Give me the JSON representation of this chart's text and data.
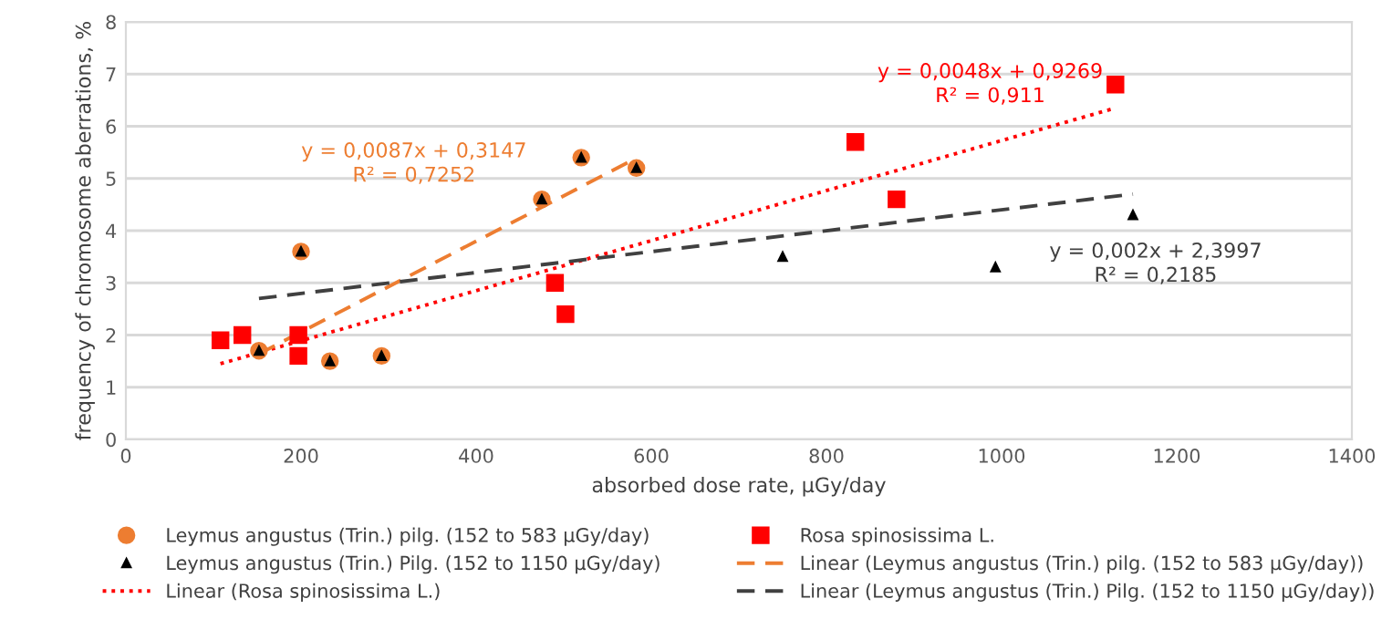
{
  "chart_data": {
    "type": "scatter",
    "xlabel": "absorbed dose rate, µGy/day",
    "ylabel": "frequency of chromosome aberrations, %",
    "xlim": [
      0,
      1400
    ],
    "xticks": [
      0,
      200,
      400,
      600,
      800,
      1000,
      1200,
      1400
    ],
    "ylim": [
      0,
      8
    ],
    "yticks": [
      0,
      1,
      2,
      3,
      4,
      5,
      6,
      7,
      8
    ],
    "grid": "y",
    "legend": "bottom",
    "series": [
      {
        "name": "Leymus angustus (Trin.) pilg. (152 to 583 µGy/day)",
        "marker": "circle",
        "color": "#ed7d31",
        "x": [
          152,
          200,
          233,
          292,
          475,
          520,
          583
        ],
        "values": [
          1.7,
          3.6,
          1.5,
          1.6,
          4.6,
          5.4,
          5.2
        ]
      },
      {
        "name": "Leymus angustus (Trin.) Pilg. (152 to 1150 µGy/day)",
        "marker": "triangle",
        "color": "#000000",
        "x": [
          152,
          200,
          233,
          292,
          475,
          520,
          583,
          750,
          993,
          1150
        ],
        "values": [
          1.7,
          3.6,
          1.5,
          1.6,
          4.6,
          5.4,
          5.2,
          3.5,
          3.3,
          4.3
        ]
      },
      {
        "name": "Linear (Rosa spinosissima L.)",
        "type": "line",
        "line_style": "dotted",
        "color": "#ff0000",
        "x": [
          108,
          1130
        ],
        "values": [
          1.45,
          6.35
        ]
      },
      {
        "name": "Rosa spinosissima L.",
        "marker": "square",
        "color": "#ff0000",
        "x": [
          108,
          133,
          197,
          197,
          490,
          502,
          833,
          880,
          1130
        ],
        "values": [
          1.9,
          2.0,
          2.0,
          1.6,
          3.0,
          2.4,
          5.7,
          4.6,
          6.8
        ]
      },
      {
        "name": "Linear (Leymus angustus (Trin.) pilg. (152 to 583 µGy/day))",
        "type": "line",
        "line_style": "dashed",
        "color": "#ed7d31",
        "x": [
          152,
          583
        ],
        "values": [
          1.64,
          5.39
        ]
      },
      {
        "name": "Linear (Leymus angustus (Trin.) Pilg. (152 to 1150 µGy/day))",
        "type": "line",
        "line_style": "dashed",
        "color": "#404040",
        "x": [
          152,
          1150
        ],
        "values": [
          2.7,
          4.7
        ]
      }
    ],
    "annotations": [
      "y = 0,0087x + 0,3147\nR² = 0,7252",
      "y = 0,0048x + 0,9269\nR² = 0,911",
      "y = 0,002x + 2,3997\nR² = 0,2185"
    ]
  }
}
